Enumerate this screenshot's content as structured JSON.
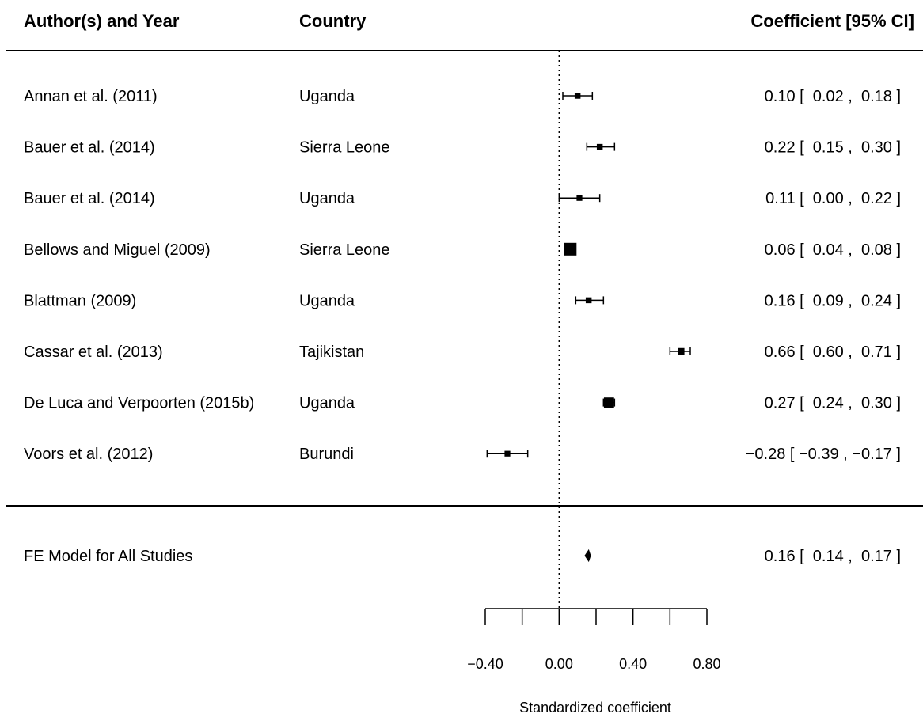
{
  "chart_data": {
    "type": "forest",
    "headers": {
      "author": "Author(s) and Year",
      "country": "Country",
      "estimate": "Coefficient [95% CI]"
    },
    "studies": [
      {
        "author": "Annan et al. (2011)",
        "country": "Uganda",
        "estimate": 0.1,
        "ci_low": 0.02,
        "ci_high": 0.18,
        "ci_text": "0.10 [  0.02 ,  0.18 ]",
        "weight": 0.05
      },
      {
        "author": "Bauer et al. (2014)",
        "country": "Sierra Leone",
        "estimate": 0.22,
        "ci_low": 0.15,
        "ci_high": 0.3,
        "ci_text": "0.22 [  0.15 ,  0.30 ]",
        "weight": 0.05
      },
      {
        "author": "Bauer et al. (2014)",
        "country": "Uganda",
        "estimate": 0.11,
        "ci_low": 0.0,
        "ci_high": 0.22,
        "ci_text": "0.11 [  0.00 ,  0.22 ]",
        "weight": 0.04
      },
      {
        "author": "Bellows and Miguel (2009)",
        "country": "Sierra Leone",
        "estimate": 0.06,
        "ci_low": 0.04,
        "ci_high": 0.08,
        "ci_text": "0.06 [  0.04 ,  0.08 ]",
        "weight": 1.0
      },
      {
        "author": "Blattman (2009)",
        "country": "Uganda",
        "estimate": 0.16,
        "ci_low": 0.09,
        "ci_high": 0.24,
        "ci_text": "0.16 [  0.09 ,  0.24 ]",
        "weight": 0.05
      },
      {
        "author": "Cassar et al. (2013)",
        "country": "Tajikistan",
        "estimate": 0.66,
        "ci_low": 0.6,
        "ci_high": 0.71,
        "ci_text": "0.66 [  0.60 ,  0.71 ]",
        "weight": 0.1
      },
      {
        "author": "De Luca and Verpoorten (2015b)",
        "country": "Uganda",
        "estimate": 0.27,
        "ci_low": 0.24,
        "ci_high": 0.3,
        "ci_text": "0.27 [  0.24 ,  0.30 ]",
        "weight": 0.5
      },
      {
        "author": "Voors et al. (2012)",
        "country": "Burundi",
        "estimate": -0.28,
        "ci_low": -0.39,
        "ci_high": -0.17,
        "ci_text": "−0.28 [ −0.39 , −0.17 ]",
        "weight": 0.04
      }
    ],
    "summary": {
      "label": "FE Model for All Studies",
      "estimate": 0.16,
      "ci_low": 0.14,
      "ci_high": 0.17,
      "ci_text": "0.16 [  0.14 ,  0.17 ]"
    },
    "reference_line": 0,
    "xlim": [
      -0.4,
      0.8
    ],
    "x_ticks": [
      -0.4,
      -0.2,
      0.0,
      0.2,
      0.4,
      0.6,
      0.8
    ],
    "x_tick_labels": [
      {
        "value": -0.4,
        "label": "−0.40"
      },
      {
        "value": 0.0,
        "label": "0.00"
      },
      {
        "value": 0.4,
        "label": "0.40"
      },
      {
        "value": 0.8,
        "label": "0.80"
      }
    ],
    "xlabel": "Standardized coefficient",
    "grid": false
  }
}
